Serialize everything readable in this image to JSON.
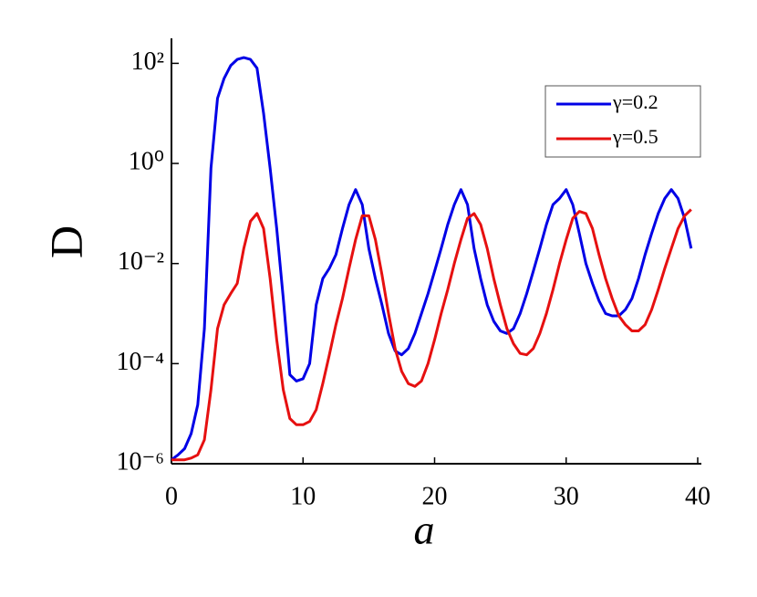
{
  "chart_data": {
    "type": "line",
    "xlabel": "a",
    "ylabel": "D",
    "log_y": true,
    "legend": "upper right",
    "xlim": [
      0,
      40
    ],
    "xticks": [
      0,
      10,
      20,
      30,
      40
    ],
    "ylim": [
      1e-06,
      316
    ],
    "yticks": [
      {
        "value": 1e-06,
        "label": "10⁻⁶"
      },
      {
        "value": 0.0001,
        "label": "10⁻⁴"
      },
      {
        "value": 0.01,
        "label": "10⁻²"
      },
      {
        "value": 1,
        "label": "10⁰"
      },
      {
        "value": 100,
        "label": "10²"
      }
    ],
    "x": [
      0,
      0.5,
      1,
      1.5,
      2,
      2.5,
      3,
      3.5,
      4,
      4.5,
      5,
      5.5,
      6,
      6.5,
      7,
      7.5,
      8,
      8.5,
      9,
      9.5,
      10,
      10.5,
      11,
      11.5,
      12,
      12.5,
      13,
      13.5,
      14,
      14.5,
      15,
      15.5,
      16,
      16.5,
      17,
      17.5,
      18,
      18.5,
      19,
      19.5,
      20,
      20.5,
      21,
      21.5,
      22,
      22.5,
      23,
      23.5,
      24,
      24.5,
      25,
      25.5,
      26,
      26.5,
      27,
      27.5,
      28,
      28.5,
      29,
      29.5,
      30,
      30.5,
      31,
      31.5,
      32,
      32.5,
      33,
      33.5,
      34,
      34.5,
      35,
      35.5,
      36,
      36.5,
      37,
      37.5,
      38,
      38.5,
      39,
      39.5
    ],
    "series": [
      {
        "name": "γ=0.2",
        "color": "#0000e6",
        "values": [
          1.2e-06,
          1.5e-06,
          2e-06,
          4e-06,
          1.5e-05,
          0.0005,
          0.8,
          20,
          50,
          90,
          120,
          130,
          120,
          80,
          10,
          0.8,
          0.05,
          0.002,
          6e-05,
          4.5e-05,
          5e-05,
          0.0001,
          0.0015,
          0.005,
          0.008,
          0.015,
          0.05,
          0.15,
          0.3,
          0.15,
          0.02,
          0.005,
          0.0015,
          0.0004,
          0.00018,
          0.00015,
          0.0002,
          0.0004,
          0.001,
          0.0025,
          0.007,
          0.02,
          0.06,
          0.15,
          0.3,
          0.15,
          0.02,
          0.005,
          0.0015,
          0.0007,
          0.00045,
          0.0004,
          0.0005,
          0.001,
          0.0025,
          0.007,
          0.02,
          0.06,
          0.15,
          0.2,
          0.3,
          0.15,
          0.04,
          0.01,
          0.004,
          0.0018,
          0.001,
          0.0009,
          0.0009,
          0.0012,
          0.002,
          0.005,
          0.015,
          0.04,
          0.1,
          0.2,
          0.3,
          0.2,
          0.08,
          0.02
        ]
      },
      {
        "name": "γ=0.5",
        "color": "#e61010",
        "values": [
          1.2e-06,
          1.2e-06,
          1.2e-06,
          1.3e-06,
          1.5e-06,
          3e-06,
          3e-05,
          0.0005,
          0.0015,
          0.0025,
          0.004,
          0.02,
          0.07,
          0.1,
          0.05,
          0.005,
          0.0003,
          3e-05,
          8e-06,
          6e-06,
          6e-06,
          7e-06,
          1.2e-05,
          4e-05,
          0.00015,
          0.0006,
          0.002,
          0.008,
          0.03,
          0.09,
          0.09,
          0.03,
          0.006,
          0.001,
          0.0002,
          7e-05,
          4e-05,
          3.5e-05,
          4.5e-05,
          0.0001,
          0.0003,
          0.001,
          0.003,
          0.01,
          0.03,
          0.08,
          0.1,
          0.06,
          0.02,
          0.005,
          0.0015,
          0.0005,
          0.00025,
          0.00016,
          0.00015,
          0.0002,
          0.0004,
          0.001,
          0.003,
          0.01,
          0.03,
          0.08,
          0.11,
          0.1,
          0.05,
          0.015,
          0.005,
          0.002,
          0.0009,
          0.0006,
          0.00045,
          0.00045,
          0.0006,
          0.0012,
          0.003,
          0.008,
          0.02,
          0.05,
          0.09,
          0.12
        ]
      }
    ]
  }
}
